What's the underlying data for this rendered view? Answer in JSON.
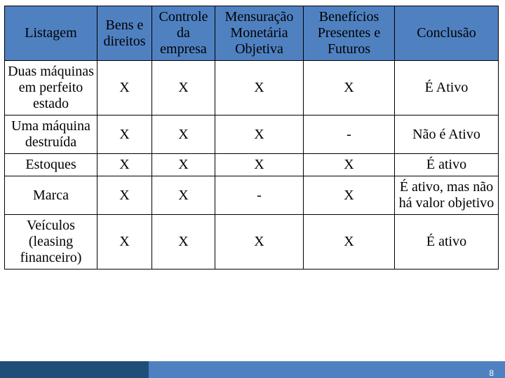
{
  "table": {
    "columns": [
      "Listagem",
      "Bens e direitos",
      "Controle da empresa",
      "Mensuração Monetária Objetiva",
      "Benefícios Presentes e Futuros",
      "Conclusão"
    ],
    "rows": [
      {
        "listagem": "Duas máquinas em perfeito estado",
        "bens": "X",
        "controle": "X",
        "mensur": "X",
        "benef": "X",
        "concl": "É Ativo"
      },
      {
        "listagem": "Uma máquina destruída",
        "bens": "X",
        "controle": "X",
        "mensur": "X",
        "benef": "-",
        "concl": "Não é Ativo"
      },
      {
        "listagem": "Estoques",
        "bens": "X",
        "controle": "X",
        "mensur": "X",
        "benef": "X",
        "concl": "É ativo"
      },
      {
        "listagem": "Marca",
        "bens": "X",
        "controle": "X",
        "mensur": "-",
        "benef": "X",
        "concl": "É ativo, mas não há valor objetivo"
      },
      {
        "listagem": "Veículos (leasing financeiro)",
        "bens": "X",
        "controle": "X",
        "mensur": "X",
        "benef": "X",
        "concl": "É ativo"
      }
    ],
    "header_bg": "#4f81c1",
    "border_color": "#000000",
    "text_color": "#000000",
    "font_size_pt": 20
  },
  "footer": {
    "light_color": "#4f81c1",
    "dark_color": "#1f4e79",
    "page_number": "8",
    "page_number_color": "#ffffff"
  }
}
